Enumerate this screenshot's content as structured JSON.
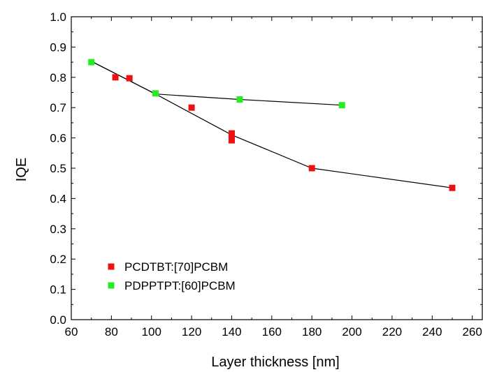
{
  "chart_data": {
    "type": "scatter",
    "xlabel": "Layer thickness [nm]",
    "ylabel": "IQE",
    "xlim": [
      60,
      265
    ],
    "ylim": [
      0.0,
      1.0
    ],
    "xticks": [
      "60",
      "80",
      "100",
      "120",
      "140",
      "160",
      "180",
      "200",
      "220",
      "240",
      "260"
    ],
    "yticks": [
      "0.0",
      "0.1",
      "0.2",
      "0.3",
      "0.4",
      "0.5",
      "0.6",
      "0.7",
      "0.8",
      "0.9",
      "1.0"
    ],
    "grid": false,
    "legend_position": "bottom-left",
    "series": [
      {
        "name": "PCDTBT:[70]PCBM",
        "color": "#ee1111",
        "marker": "square",
        "points": [
          [
            82,
            0.8
          ],
          [
            89,
            0.797
          ],
          [
            120,
            0.7
          ],
          [
            140,
            0.615
          ],
          [
            140,
            0.603
          ],
          [
            140,
            0.592
          ],
          [
            180,
            0.5
          ],
          [
            250,
            0.435
          ]
        ],
        "fit_line": [
          [
            70,
            0.853
          ],
          [
            102,
            0.745
          ],
          [
            140,
            0.61
          ],
          [
            180,
            0.5
          ],
          [
            250,
            0.435
          ]
        ]
      },
      {
        "name": "PDPPTPT:[60]PCBM",
        "color": "#22ee22",
        "marker": "square",
        "points": [
          [
            70,
            0.85
          ],
          [
            102,
            0.747
          ],
          [
            144,
            0.727
          ],
          [
            195,
            0.708
          ]
        ],
        "fit_line": [
          [
            70,
            0.853
          ],
          [
            102,
            0.745
          ],
          [
            144,
            0.727
          ],
          [
            195,
            0.708
          ]
        ]
      }
    ]
  }
}
